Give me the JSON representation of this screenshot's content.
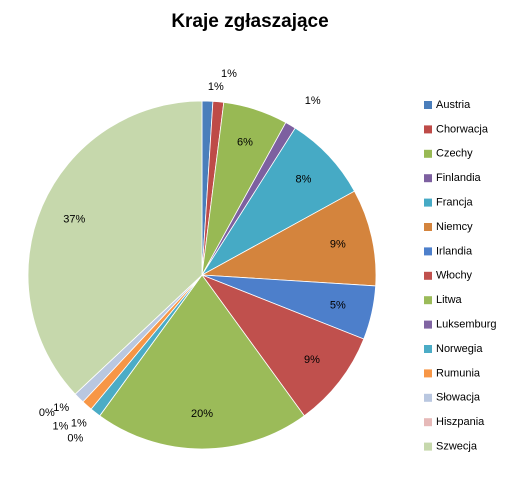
{
  "chart_data": {
    "type": "pie",
    "title": "Kraje zgłaszające",
    "categories": [
      "Austria",
      "Chorwacja",
      "Czechy",
      "Finlandia",
      "Francja",
      "Niemcy",
      "Irlandia",
      "Włochy",
      "Litwa",
      "Luksemburg",
      "Norwegia",
      "Rumunia",
      "Słowacja",
      "Hiszpania",
      "Szwecja"
    ],
    "values": [
      1,
      1,
      6,
      1,
      8,
      9,
      5,
      9,
      20,
      0,
      1,
      1,
      1,
      0,
      37
    ],
    "value_labels": [
      "1%",
      "1%",
      "6%",
      "1%",
      "8%",
      "9%",
      "5%",
      "9%",
      "20%",
      "0%",
      "1%",
      "1%",
      "1%",
      "0%",
      "37%"
    ],
    "colors": [
      "#4a7ebb",
      "#be4b48",
      "#98b954",
      "#7d60a0",
      "#46aac5",
      "#d4843d",
      "#4d7fcb",
      "#c0504d",
      "#9bbb59",
      "#8064a2",
      "#4bacc6",
      "#f79646",
      "#b9c7e0",
      "#e6b9b8",
      "#c6d8ac"
    ],
    "legend": "right"
  }
}
